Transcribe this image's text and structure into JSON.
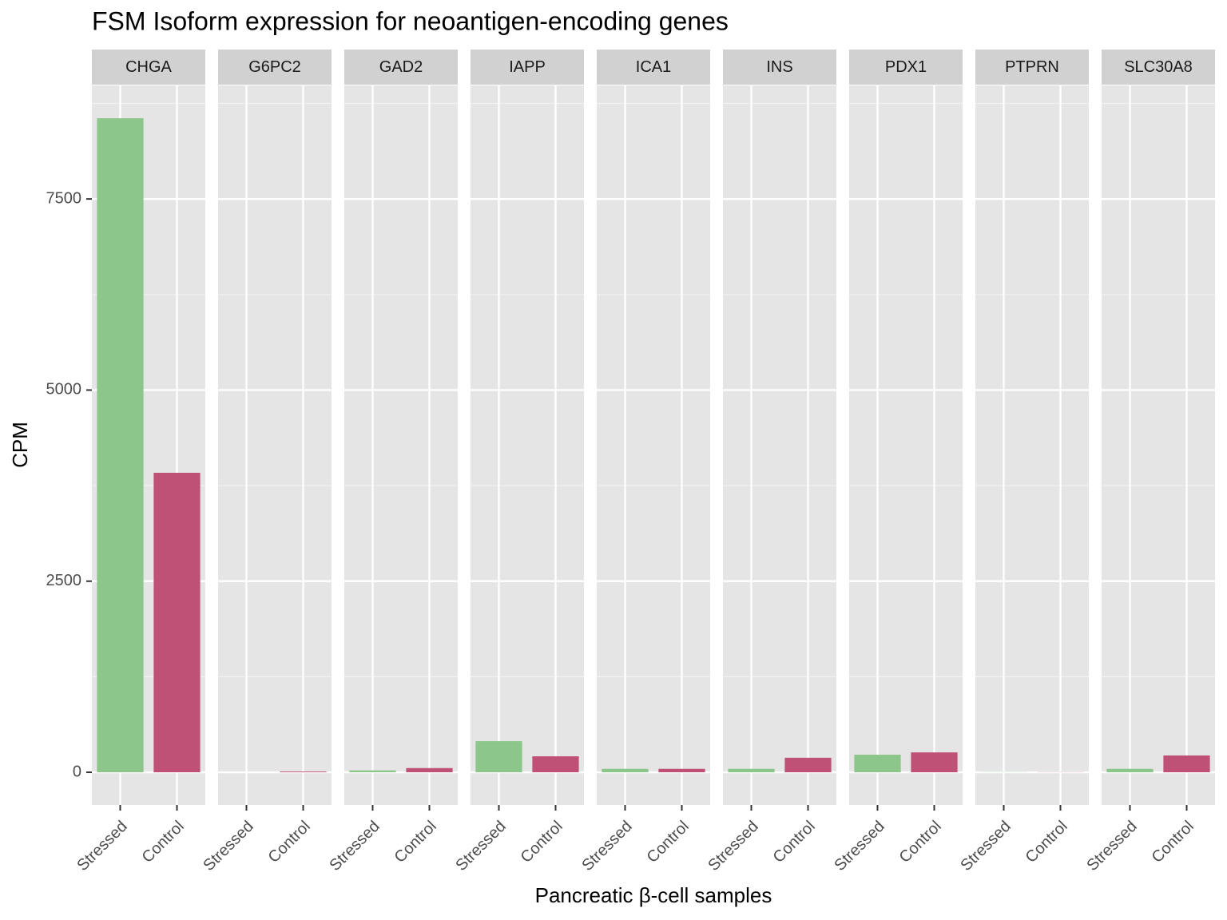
{
  "chart_data": {
    "type": "bar",
    "title": "FSM Isoform expression for neoantigen-encoding genes",
    "x_label": "Pancreatic β-cell samples",
    "y_label": "CPM",
    "categories": [
      "Stressed",
      "Control"
    ],
    "colors": [
      "#8dc68a",
      "#c05176"
    ],
    "facets": [
      {
        "name": "CHGA",
        "values": [
          8556,
          3918
        ]
      },
      {
        "name": "G6PC2",
        "values": [
          0,
          10
        ]
      },
      {
        "name": "GAD2",
        "values": [
          25,
          55
        ]
      },
      {
        "name": "IAPP",
        "values": [
          407,
          209
        ]
      },
      {
        "name": "ICA1",
        "values": [
          45,
          45
        ]
      },
      {
        "name": "INS",
        "values": [
          45,
          190
        ]
      },
      {
        "name": "PDX1",
        "values": [
          230,
          260
        ]
      },
      {
        "name": "PTPRN",
        "values": [
          2,
          2
        ]
      },
      {
        "name": "SLC30A8",
        "values": [
          45,
          220
        ]
      }
    ],
    "ylim": [
      -428,
      8985
    ],
    "yticks": [
      0,
      2500,
      5000,
      7500
    ],
    "minor_yticks": [
      1250,
      3750,
      6250,
      8750
    ],
    "grid": true
  }
}
